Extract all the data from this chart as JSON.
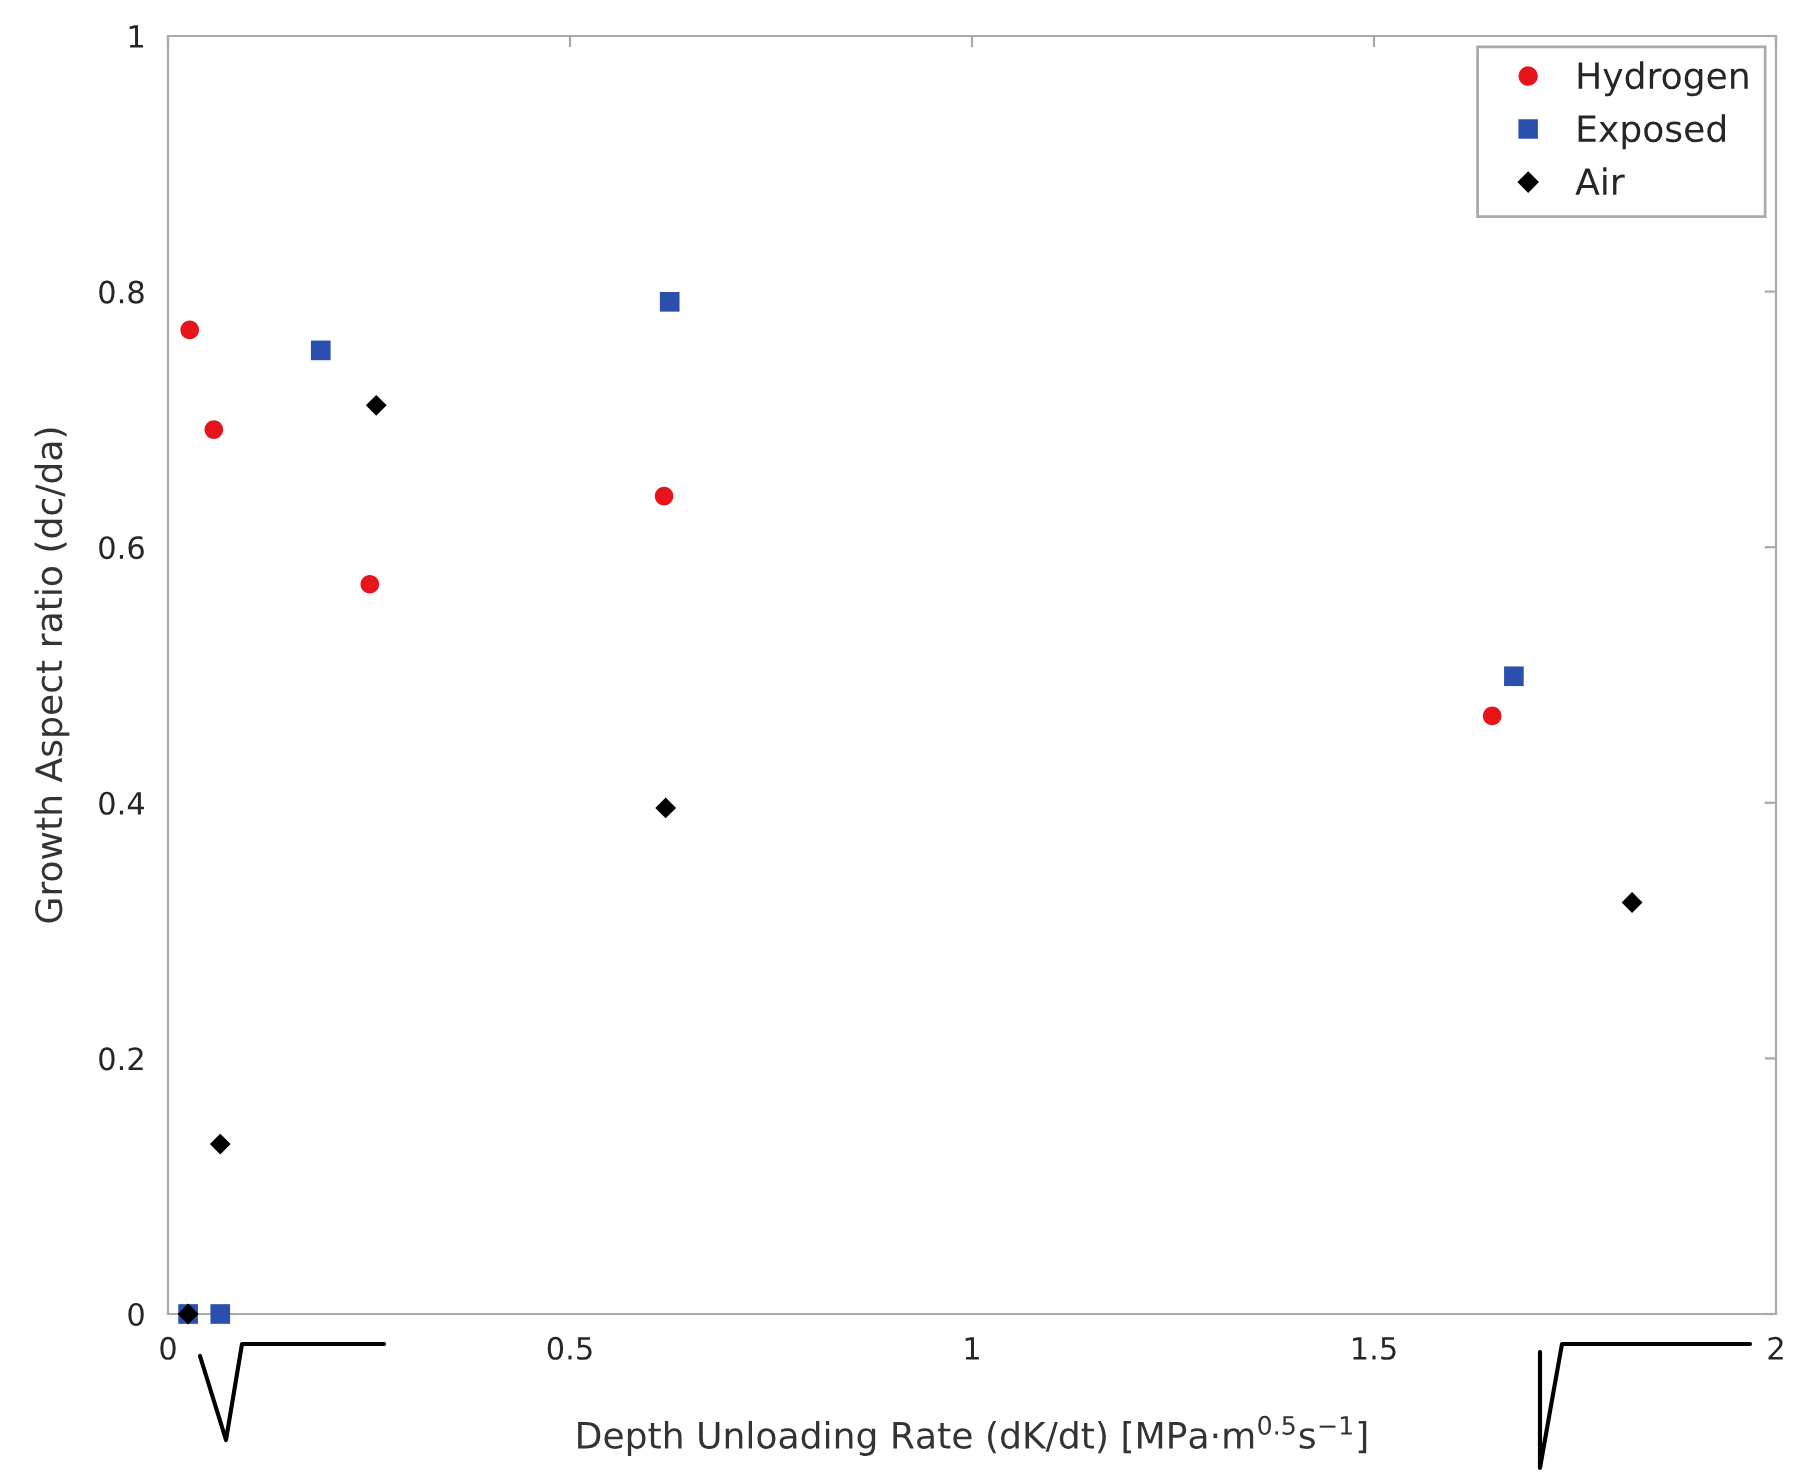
{
  "chart_data": {
    "type": "scatter",
    "xlabel": "Depth Unloading Rate (dK/dt) [MPa·m$^{0.5}$s$^{−1}$]",
    "ylabel": "Growth Aspect ratio (dc/da)",
    "series": [
      {
        "name": "Hydrogen",
        "color": "#e8141c",
        "marker": "circle",
        "x": [
          0.027,
          0.057,
          0.251,
          0.617,
          1.647
        ],
        "values": [
          0.77,
          0.692,
          0.571,
          0.64,
          0.468
        ]
      },
      {
        "name": "Exposed",
        "color": "#2b4fae",
        "marker": "square",
        "x": [
          0.025,
          0.065,
          0.19,
          0.624,
          1.674
        ],
        "values": [
          0,
          0,
          0.754,
          0.792,
          0.499
        ]
      },
      {
        "name": "Air",
        "color": "#000000",
        "marker": "diamond",
        "x": [
          0.025,
          0.065,
          0.259,
          0.619,
          1.821
        ],
        "values": [
          0,
          0.133,
          0.711,
          0.396,
          0.322
        ]
      }
    ],
    "xlim": [
      0,
      2
    ],
    "xticks": [
      0,
      0.5,
      1,
      1.5,
      2
    ],
    "ylim": [
      0,
      1
    ],
    "yticks": [
      0,
      0.2,
      0.4,
      0.6,
      0.8,
      1
    ],
    "grid": false,
    "legend": "top right"
  }
}
